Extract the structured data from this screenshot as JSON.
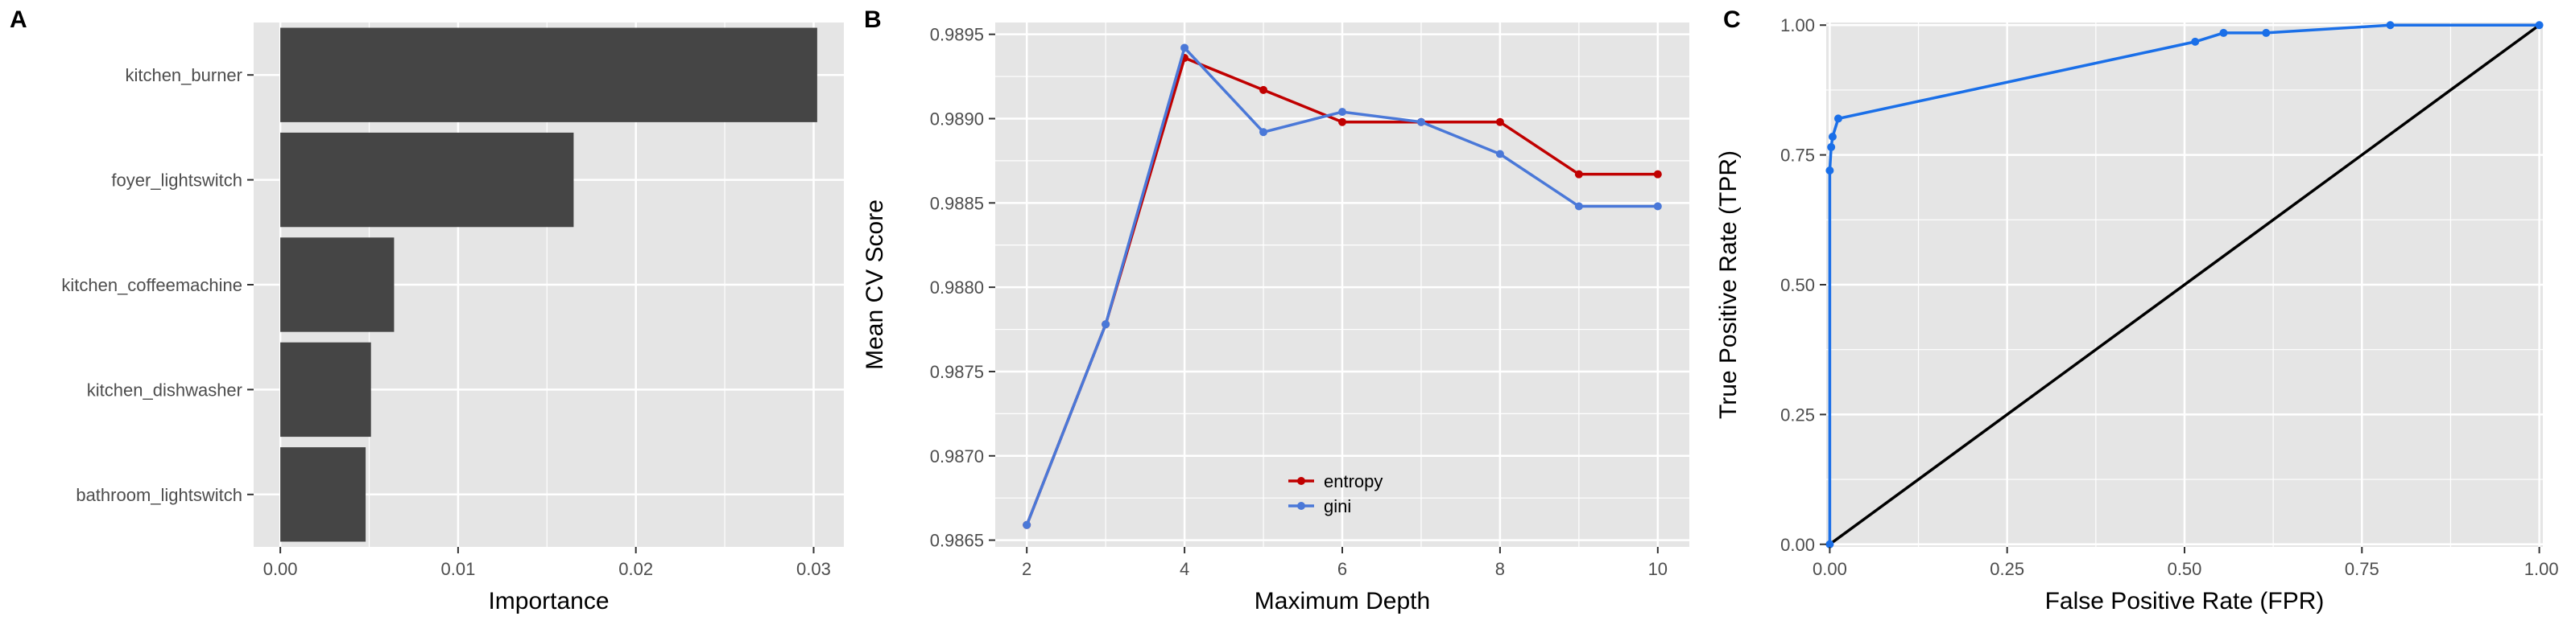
{
  "panels": {
    "a": {
      "letter": "A"
    },
    "b": {
      "letter": "B"
    },
    "c": {
      "letter": "C"
    }
  },
  "colors": {
    "panel_bg": "#e5e5e5",
    "grid": "#ffffff",
    "bar": "#454545",
    "entropy": "#c00000",
    "gini": "#4a78d8",
    "roc": "#1a6fe8",
    "diagonal": "#000000"
  },
  "chart_data": [
    {
      "type": "bar",
      "orientation": "horizontal",
      "categories": [
        "kitchen_burner",
        "foyer_lightswitch",
        "kitchen_coffeemachine",
        "kitchen_dishwasher",
        "bathroom_lightswitch"
      ],
      "values": [
        0.0302,
        0.0165,
        0.0064,
        0.0051,
        0.0048
      ],
      "xlabel": "Importance",
      "ylabel": "",
      "xlim": [
        -0.0015,
        0.0317
      ],
      "xticks": [
        0.0,
        0.01,
        0.02,
        0.03
      ],
      "xtick_labels": [
        "0.00",
        "0.01",
        "0.02",
        "0.03"
      ],
      "grid": true
    },
    {
      "type": "line",
      "x": [
        2,
        3,
        4,
        5,
        6,
        7,
        8,
        9,
        10
      ],
      "series": [
        {
          "name": "entropy",
          "values": [
            0.98659,
            0.98778,
            0.98936,
            0.98917,
            0.98898,
            0.98898,
            0.98898,
            0.98867,
            0.98867
          ]
        },
        {
          "name": "gini",
          "values": [
            0.98659,
            0.98778,
            0.98942,
            0.98892,
            0.98904,
            0.98898,
            0.98879,
            0.98848,
            0.98848
          ]
        }
      ],
      "xlabel": "Maximum Depth",
      "ylabel": "Mean CV Score",
      "xlim": [
        1.6,
        10.4
      ],
      "ylim": [
        0.98646,
        0.98957
      ],
      "xticks": [
        2,
        4,
        6,
        8,
        10
      ],
      "xtick_labels": [
        "2",
        "4",
        "6",
        "8",
        "10"
      ],
      "yticks": [
        0.9865,
        0.987,
        0.9875,
        0.988,
        0.9885,
        0.989,
        0.9895
      ],
      "ytick_labels": [
        "0.9865",
        "0.9870",
        "0.9875",
        "0.9880",
        "0.9885",
        "0.9890",
        "0.9895"
      ],
      "legend": "bottom-center",
      "grid": true
    },
    {
      "type": "line",
      "x_points": [
        0,
        0,
        0.002,
        0.004,
        0.012,
        0.515,
        0.555,
        0.615,
        0.79,
        1.0
      ],
      "y_points": [
        0,
        0.72,
        0.765,
        0.785,
        0.82,
        0.968,
        0.985,
        0.985,
        1.0,
        1.0
      ],
      "diagonal": [
        [
          0,
          0
        ],
        [
          1,
          1
        ]
      ],
      "xlabel": "False Positive Rate (FPR)",
      "ylabel": "True Positive Rate (TPR)",
      "xlim": [
        -0.005,
        1.005
      ],
      "ylim": [
        -0.005,
        1.005
      ],
      "xticks": [
        0,
        0.25,
        0.5,
        0.75,
        1.0
      ],
      "xtick_labels": [
        "0.00",
        "0.25",
        "0.50",
        "0.75",
        "1.00"
      ],
      "yticks": [
        0,
        0.25,
        0.5,
        0.75,
        1.0
      ],
      "ytick_labels": [
        "0.00",
        "0.25",
        "0.50",
        "0.75",
        "1.00"
      ],
      "grid": true
    }
  ]
}
